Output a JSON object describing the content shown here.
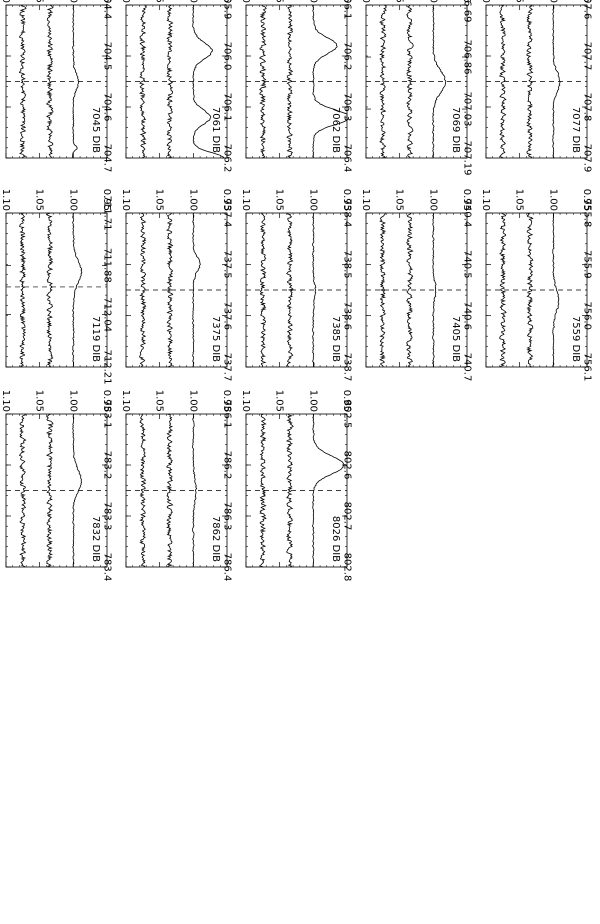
{
  "chart_data": [
    {
      "type": "line",
      "label": "7045 DIB",
      "x": [
        "704.4",
        "704.5",
        "704.6",
        "704.7"
      ],
      "y": [
        "0.95",
        "1.00",
        "1.05",
        "1.10"
      ],
      "vline": 704.55,
      "xlim": [
        704.4,
        704.7
      ],
      "ylim": [
        0.95,
        1.1
      ],
      "features": [
        {
          "center": 704.55,
          "width": 0.02,
          "depth": 0.008
        },
        {
          "center": 704.68,
          "width": 0.006,
          "depth": 0.006
        }
      ]
    },
    {
      "type": "line",
      "label": "7119 DIB",
      "x": [
        "711.71",
        "711.88",
        "712.04",
        "712.21"
      ],
      "y": [
        "0.95",
        "1.00",
        "1.05",
        "1.10"
      ],
      "vline": 711.95,
      "xlim": [
        711.71,
        712.21
      ],
      "ylim": [
        0.95,
        1.1
      ],
      "features": [
        {
          "center": 711.9,
          "width": 0.05,
          "depth": 0.012
        }
      ]
    },
    {
      "type": "line",
      "label": "7832 DIB",
      "x": [
        "783.1",
        "783.2",
        "783.3",
        "783.4"
      ],
      "y": [
        "0.95",
        "1.00",
        "1.05",
        "1.10"
      ],
      "vline": 783.25,
      "xlim": [
        783.1,
        783.4
      ],
      "ylim": [
        0.95,
        1.1
      ],
      "features": [
        {
          "center": 783.23,
          "width": 0.03,
          "depth": 0.012
        }
      ]
    },
    {
      "type": "line",
      "label": "7061 DIB",
      "x": [
        "705.9",
        "706.0",
        "706.1",
        "706.2"
      ],
      "y": [
        "0.95",
        "1.00",
        "1.05",
        "1.10"
      ],
      "vline": 706.05,
      "xlim": [
        705.9,
        706.2
      ],
      "ylim": [
        0.95,
        1.1
      ],
      "features": [
        {
          "center": 705.99,
          "width": 0.022,
          "depth": 0.028
        },
        {
          "center": 706.12,
          "width": 0.02,
          "depth": 0.025
        },
        {
          "center": 706.2,
          "width": 0.015,
          "depth": 0.045
        }
      ]
    },
    {
      "type": "line",
      "label": "7375 DIB",
      "x": [
        "737.4",
        "737.5",
        "737.6",
        "737.7"
      ],
      "y": [
        "0.95",
        "1.00",
        "1.05",
        "1.10"
      ],
      "vline": 737.55,
      "xlim": [
        737.4,
        737.7
      ],
      "ylim": [
        0.95,
        1.1
      ],
      "features": [
        {
          "center": 737.5,
          "width": 0.02,
          "depth": 0.01
        }
      ]
    },
    {
      "type": "line",
      "label": "7862 DIB",
      "x": [
        "786.1",
        "786.2",
        "786.3",
        "786.4"
      ],
      "y": [
        "0.95",
        "1.00",
        "1.05",
        "1.10"
      ],
      "vline": 786.25,
      "xlim": [
        786.1,
        786.4
      ],
      "ylim": [
        0.95,
        1.1
      ],
      "features": [
        {
          "center": 786.25,
          "width": 0.03,
          "depth": 0.004
        }
      ]
    },
    {
      "type": "line",
      "label": "7062 DIB",
      "x": [
        "706.1",
        "706.2",
        "706.3",
        "706.4"
      ],
      "y": [
        "0.95",
        "1.00",
        "1.05",
        "1.10"
      ],
      "vline": 706.25,
      "xlim": [
        706.1,
        706.4
      ],
      "ylim": [
        0.95,
        1.1
      ],
      "features": [
        {
          "center": 706.18,
          "width": 0.022,
          "depth": 0.035
        },
        {
          "center": 706.32,
          "width": 0.02,
          "depth": 0.055
        }
      ]
    },
    {
      "type": "line",
      "label": "7385 DIB",
      "x": [
        "738.4",
        "738.5",
        "738.6",
        "738.7"
      ],
      "y": [
        "0.95",
        "1.00",
        "1.05",
        "1.10"
      ],
      "vline": 738.55,
      "xlim": [
        738.4,
        738.7
      ],
      "ylim": [
        0.95,
        1.1
      ],
      "features": [
        {
          "center": 738.55,
          "width": 0.02,
          "depth": 0.003
        }
      ]
    },
    {
      "type": "line",
      "label": "8026 DIB",
      "x": [
        "802.5",
        "802.6",
        "802.7",
        "802.8"
      ],
      "y": [
        "0.95",
        "1.00",
        "1.05",
        "1.10"
      ],
      "vline": 802.65,
      "xlim": [
        802.5,
        802.8
      ],
      "ylim": [
        0.95,
        1.1
      ],
      "features": [
        {
          "center": 802.6,
          "width": 0.025,
          "depth": 0.045
        }
      ]
    },
    {
      "type": "line",
      "label": "7069 DIB",
      "x": [
        "706.69",
        "706.86",
        "707.03",
        "707.19"
      ],
      "y": [
        "0.95",
        "1.00",
        "1.05",
        "1.10"
      ],
      "vline": 706.94,
      "xlim": [
        706.69,
        707.19
      ],
      "ylim": [
        0.95,
        1.1
      ],
      "features": [
        {
          "center": 706.94,
          "width": 0.05,
          "depth": 0.018
        }
      ]
    },
    {
      "type": "line",
      "label": "7405 DIB",
      "x": [
        "740.4",
        "740.5",
        "740.6",
        "740.7"
      ],
      "y": [
        "0.95",
        "1.00",
        "1.05",
        "1.10"
      ],
      "vline": 740.55,
      "xlim": [
        740.4,
        740.7
      ],
      "ylim": [
        0.95,
        1.1
      ],
      "features": [
        {
          "center": 740.55,
          "width": 0.02,
          "depth": 0.004
        }
      ]
    },
    {
      "type": "line",
      "label": "7077 DIB",
      "x": [
        "707.6",
        "707.7",
        "707.8",
        "707.9"
      ],
      "y": [
        "0.95",
        "1.00",
        "1.05",
        "1.10"
      ],
      "vline": 707.75,
      "xlim": [
        707.6,
        707.9
      ],
      "ylim": [
        0.95,
        1.1
      ],
      "features": [
        {
          "center": 707.75,
          "width": 0.025,
          "depth": 0.01
        }
      ]
    },
    {
      "type": "line",
      "label": "7559 DIB",
      "x": [
        "755.8",
        "755.9",
        "756.0",
        "756.1"
      ],
      "y": [
        "0.95",
        "1.00",
        "1.05",
        "1.10"
      ],
      "vline": 755.95,
      "xlim": [
        755.8,
        756.1
      ],
      "ylim": [
        0.95,
        1.1
      ],
      "features": [
        {
          "center": 755.97,
          "width": 0.03,
          "depth": 0.008
        }
      ]
    }
  ]
}
